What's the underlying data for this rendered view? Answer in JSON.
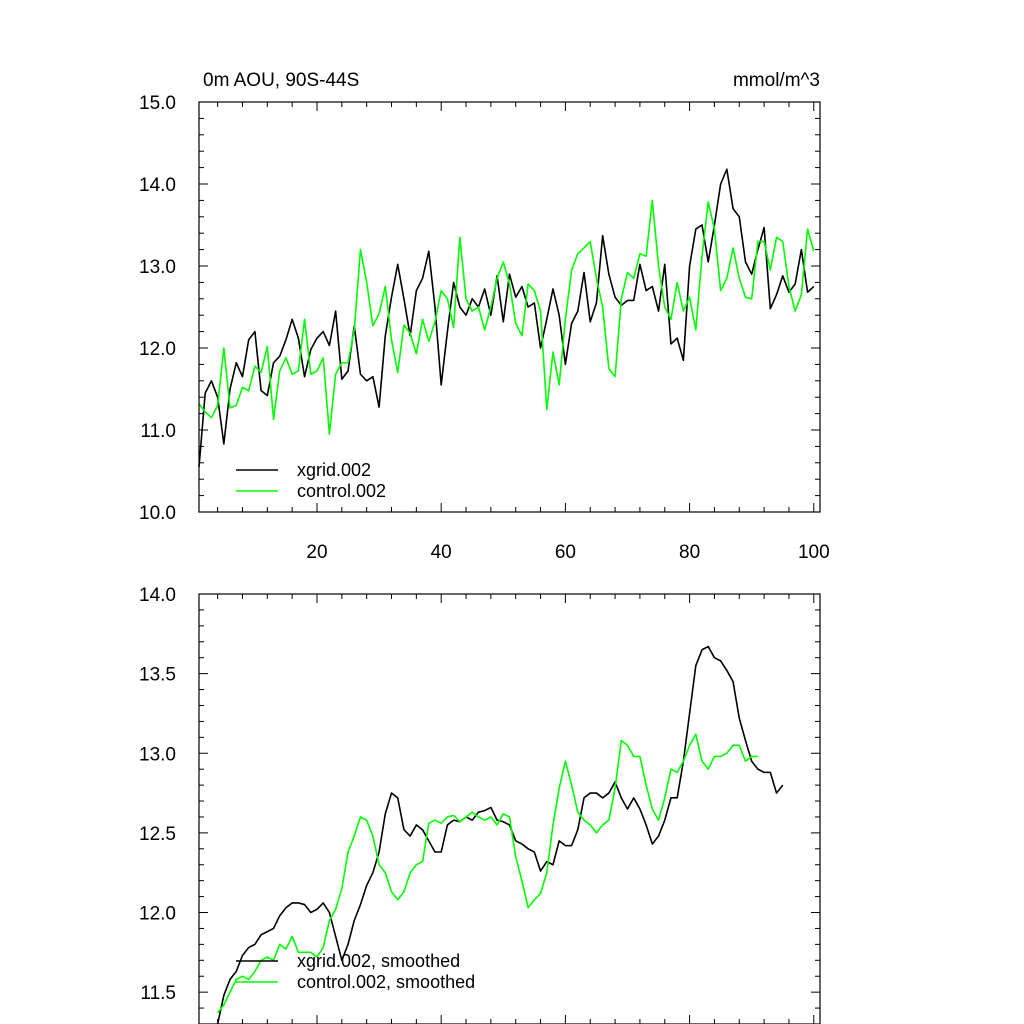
{
  "chart_data": [
    {
      "type": "line",
      "title_left": "0m AOU, 90S-44S",
      "title_right": "mmol/m^3",
      "xlabel": "",
      "ylabel": "",
      "xlim": [
        1,
        101
      ],
      "ylim": [
        10.0,
        15.0
      ],
      "x_tick_labels": [
        "20",
        "40",
        "60",
        "80",
        "100"
      ],
      "y_tick_labels": [
        "10.0",
        "11.0",
        "12.0",
        "13.0",
        "14.0",
        "15.0"
      ],
      "legend": [
        "xgrid.002",
        "control.002"
      ],
      "legend_position": "bottom-left",
      "series": [
        {
          "name": "xgrid.002",
          "color": "#000000",
          "x_start": 1,
          "values": [
            10.55,
            11.45,
            11.6,
            11.4,
            10.83,
            11.5,
            11.82,
            11.65,
            12.1,
            12.2,
            11.48,
            11.42,
            11.82,
            11.9,
            12.1,
            12.35,
            12.12,
            11.65,
            11.98,
            12.12,
            12.2,
            12.03,
            12.45,
            11.62,
            11.72,
            12.27,
            11.68,
            11.6,
            11.65,
            11.28,
            12.15,
            12.62,
            13.02,
            12.6,
            12.15,
            12.7,
            12.85,
            13.18,
            12.5,
            11.55,
            12.2,
            12.8,
            12.5,
            12.4,
            12.6,
            12.5,
            12.72,
            12.4,
            12.88,
            12.32,
            12.9,
            12.62,
            12.75,
            12.5,
            12.55,
            12.0,
            12.35,
            12.72,
            12.4,
            11.8,
            12.3,
            12.45,
            12.92,
            12.32,
            12.55,
            13.37,
            12.9,
            12.62,
            12.52,
            12.58,
            12.58,
            13.02,
            12.7,
            12.75,
            12.45,
            13.02,
            12.05,
            12.12,
            11.85,
            13.0,
            13.45,
            13.5,
            13.05,
            13.5,
            14.0,
            14.18,
            13.7,
            13.6,
            13.05,
            12.9,
            13.2,
            13.47,
            12.48,
            12.65,
            12.88,
            12.68,
            12.78,
            13.2,
            12.68,
            12.75
          ]
        },
        {
          "name": "control.002",
          "color": "#00ff00",
          "x_start": 1,
          "values": [
            11.32,
            11.22,
            11.15,
            11.3,
            12.0,
            11.27,
            11.3,
            11.52,
            11.48,
            11.78,
            11.7,
            12.02,
            11.13,
            11.72,
            11.88,
            11.68,
            11.72,
            12.35,
            11.68,
            11.72,
            11.88,
            10.95,
            11.68,
            11.82,
            11.82,
            12.22,
            13.2,
            12.8,
            12.27,
            12.42,
            12.75,
            12.1,
            11.7,
            12.28,
            12.18,
            11.93,
            12.35,
            12.08,
            12.32,
            12.7,
            12.6,
            12.25,
            13.35,
            12.6,
            12.45,
            12.5,
            12.22,
            12.5,
            12.85,
            13.05,
            12.78,
            12.3,
            12.15,
            12.78,
            12.7,
            12.45,
            11.25,
            11.95,
            11.55,
            12.35,
            12.95,
            13.15,
            13.22,
            13.3,
            12.85,
            12.5,
            11.75,
            11.65,
            12.6,
            12.92,
            12.85,
            13.15,
            13.12,
            13.8,
            13.0,
            12.5,
            12.35,
            12.8,
            12.45,
            12.62,
            12.22,
            13.12,
            13.78,
            13.45,
            12.7,
            12.85,
            13.22,
            12.85,
            12.62,
            12.6,
            13.3,
            13.3,
            12.95,
            13.35,
            13.3,
            12.75,
            12.45,
            12.65,
            13.45,
            13.18
          ]
        }
      ]
    },
    {
      "type": "line",
      "xlabel": "",
      "ylabel": "",
      "xlim": [
        1,
        101
      ],
      "ylim": [
        11.3,
        14.0
      ],
      "x_tick_labels": [],
      "y_tick_labels": [
        "11.5",
        "12.0",
        "12.5",
        "13.0",
        "13.5",
        "14.0"
      ],
      "legend": [
        "xgrid.002, smoothed",
        "control.002, smoothed"
      ],
      "legend_position": "bottom-left",
      "series": [
        {
          "name": "xgrid.002, smoothed",
          "color": "#000000",
          "x_start": 4,
          "values": [
            11.3,
            11.48,
            11.58,
            11.63,
            11.73,
            11.78,
            11.8,
            11.86,
            11.88,
            11.9,
            11.98,
            12.03,
            12.06,
            12.06,
            12.05,
            12.0,
            12.02,
            12.06,
            12.0,
            11.85,
            11.7,
            11.8,
            11.95,
            12.05,
            12.17,
            12.25,
            12.38,
            12.62,
            12.75,
            12.72,
            12.52,
            12.48,
            12.55,
            12.52,
            12.45,
            12.38,
            12.38,
            12.55,
            12.58,
            12.57,
            12.6,
            12.58,
            12.63,
            12.64,
            12.66,
            12.58,
            12.57,
            12.55,
            12.45,
            12.43,
            12.4,
            12.38,
            12.26,
            12.32,
            12.3,
            12.45,
            12.42,
            12.42,
            12.52,
            12.72,
            12.75,
            12.75,
            12.72,
            12.75,
            12.82,
            12.72,
            12.65,
            12.72,
            12.65,
            12.55,
            12.43,
            12.48,
            12.58,
            12.72,
            12.72,
            12.95,
            13.25,
            13.55,
            13.65,
            13.67,
            13.6,
            13.58,
            13.52,
            13.45,
            13.22,
            13.08,
            12.95,
            12.9,
            12.88,
            12.88,
            12.75,
            12.8
          ]
        },
        {
          "name": "control.002, smoothed",
          "color": "#00ff00",
          "x_start": 4,
          "values": [
            11.37,
            11.42,
            11.5,
            11.58,
            11.6,
            11.58,
            11.63,
            11.7,
            11.72,
            11.7,
            11.8,
            11.77,
            11.85,
            11.75,
            11.75,
            11.75,
            11.72,
            11.78,
            11.95,
            12.02,
            12.15,
            12.38,
            12.48,
            12.6,
            12.58,
            12.48,
            12.3,
            12.25,
            12.13,
            12.08,
            12.13,
            12.25,
            12.3,
            12.32,
            12.56,
            12.58,
            12.56,
            12.6,
            12.61,
            12.57,
            12.6,
            12.63,
            12.6,
            12.58,
            12.6,
            12.55,
            12.62,
            12.6,
            12.35,
            12.2,
            12.03,
            12.08,
            12.12,
            12.25,
            12.55,
            12.78,
            12.95,
            12.8,
            12.63,
            12.58,
            12.55,
            12.5,
            12.55,
            12.58,
            12.78,
            13.08,
            13.05,
            12.98,
            12.98,
            12.8,
            12.65,
            12.58,
            12.72,
            12.9,
            12.88,
            12.95,
            13.05,
            13.12,
            12.95,
            12.9,
            12.98,
            12.98,
            13.0,
            13.05,
            13.05,
            12.95,
            12.98,
            12.98
          ]
        }
      ]
    }
  ]
}
